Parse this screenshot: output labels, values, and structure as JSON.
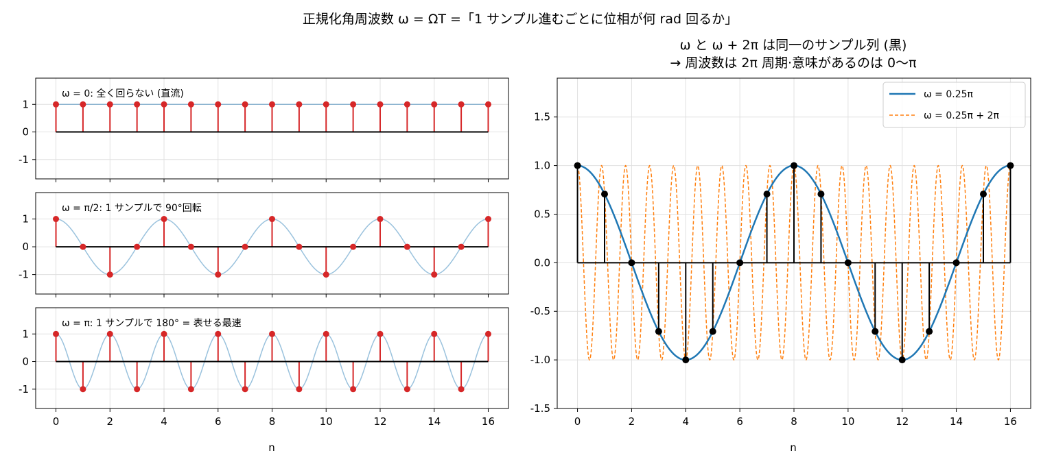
{
  "suptitle": "正規化角周波数 ω = ΩT =「1 サンプル進むごとに位相が何 rad 回るか」",
  "colors": {
    "stem": "#d62728",
    "stem_marker": "#d62728",
    "continuous_light": "#1f77b4",
    "baseline": "#000000",
    "series_blue": "#1f77b4",
    "series_orange": "#ff7f0e",
    "samples_black": "#000000",
    "grid": "#e0e0e0"
  },
  "chart_data": [
    {
      "type": "stem",
      "annotation": "ω = 0: 全く回らない (直流)",
      "omega_over_pi": 0,
      "n": [
        0,
        1,
        2,
        3,
        4,
        5,
        6,
        7,
        8,
        9,
        10,
        11,
        12,
        13,
        14,
        15,
        16
      ],
      "values": [
        1,
        1,
        1,
        1,
        1,
        1,
        1,
        1,
        1,
        1,
        1,
        1,
        1,
        1,
        1,
        1,
        1
      ],
      "ylim": [
        -1.7,
        1.95
      ],
      "yticks": [
        1,
        0,
        -1
      ],
      "ytick_labels": [
        "1",
        "0",
        "-1"
      ],
      "xlim": [
        -0.75,
        16.75
      ],
      "grid": true
    },
    {
      "type": "stem",
      "annotation": "ω = π/2: 1 サンプルで 90°回転",
      "omega_over_pi": 0.5,
      "n": [
        0,
        1,
        2,
        3,
        4,
        5,
        6,
        7,
        8,
        9,
        10,
        11,
        12,
        13,
        14,
        15,
        16
      ],
      "values": [
        1,
        0,
        -1,
        0,
        1,
        0,
        -1,
        0,
        1,
        0,
        -1,
        0,
        1,
        0,
        -1,
        0,
        1
      ],
      "ylim": [
        -1.7,
        1.95
      ],
      "yticks": [
        1,
        0,
        -1
      ],
      "ytick_labels": [
        "1",
        "0",
        "-1"
      ],
      "xlim": [
        -0.75,
        16.75
      ],
      "grid": true
    },
    {
      "type": "stem",
      "annotation": "ω = π: 1 サンプルで 180° = 表せる最速",
      "omega_over_pi": 1,
      "n": [
        0,
        1,
        2,
        3,
        4,
        5,
        6,
        7,
        8,
        9,
        10,
        11,
        12,
        13,
        14,
        15,
        16
      ],
      "values": [
        1,
        -1,
        1,
        -1,
        1,
        -1,
        1,
        -1,
        1,
        -1,
        1,
        -1,
        1,
        -1,
        1,
        -1,
        1
      ],
      "ylim": [
        -1.7,
        1.95
      ],
      "yticks": [
        1,
        0,
        -1
      ],
      "ytick_labels": [
        "1",
        "0",
        "-1"
      ],
      "xlim": [
        -0.75,
        16.75
      ],
      "xticks": [
        0,
        2,
        4,
        6,
        8,
        10,
        12,
        14,
        16
      ],
      "xtick_labels": [
        "0",
        "2",
        "4",
        "6",
        "8",
        "10",
        "12",
        "14",
        "16"
      ],
      "xlabel": "n",
      "grid": true
    },
    {
      "type": "line",
      "title_line1": "ω と ω + 2π は同一のサンプル列 (黒)",
      "title_line2": "→ 周波数は 2π 周期·意味があるのは 0〜π",
      "xlabel": "n",
      "xlim": [
        -0.75,
        16.75
      ],
      "ylim": [
        -1.5,
        1.9
      ],
      "xticks": [
        0,
        2,
        4,
        6,
        8,
        10,
        12,
        14,
        16
      ],
      "xtick_labels": [
        "0",
        "2",
        "4",
        "6",
        "8",
        "10",
        "12",
        "14",
        "16"
      ],
      "yticks": [
        1.5,
        1.0,
        0.5,
        0.0,
        -0.5,
        -1.0,
        -1.5
      ],
      "ytick_labels": [
        "1.5",
        "1.0",
        "0.5",
        "0.0",
        "-0.5",
        "-1.0",
        "-1.5"
      ],
      "grid": true,
      "legend_position": "top-right",
      "series": [
        {
          "name": "ω = 0.25π",
          "omega_over_pi": 0.25,
          "style": "solid"
        },
        {
          "name": "ω = 0.25π + 2π",
          "omega_over_pi": 2.25,
          "style": "dashed"
        }
      ],
      "samples": {
        "n": [
          0,
          1,
          2,
          3,
          4,
          5,
          6,
          7,
          8,
          9,
          10,
          11,
          12,
          13,
          14,
          15,
          16
        ],
        "values": [
          1,
          0.707,
          0,
          -0.707,
          -1,
          -0.707,
          0,
          0.707,
          1,
          0.707,
          0,
          -0.707,
          -1,
          -0.707,
          0,
          0.707,
          1
        ]
      }
    }
  ]
}
